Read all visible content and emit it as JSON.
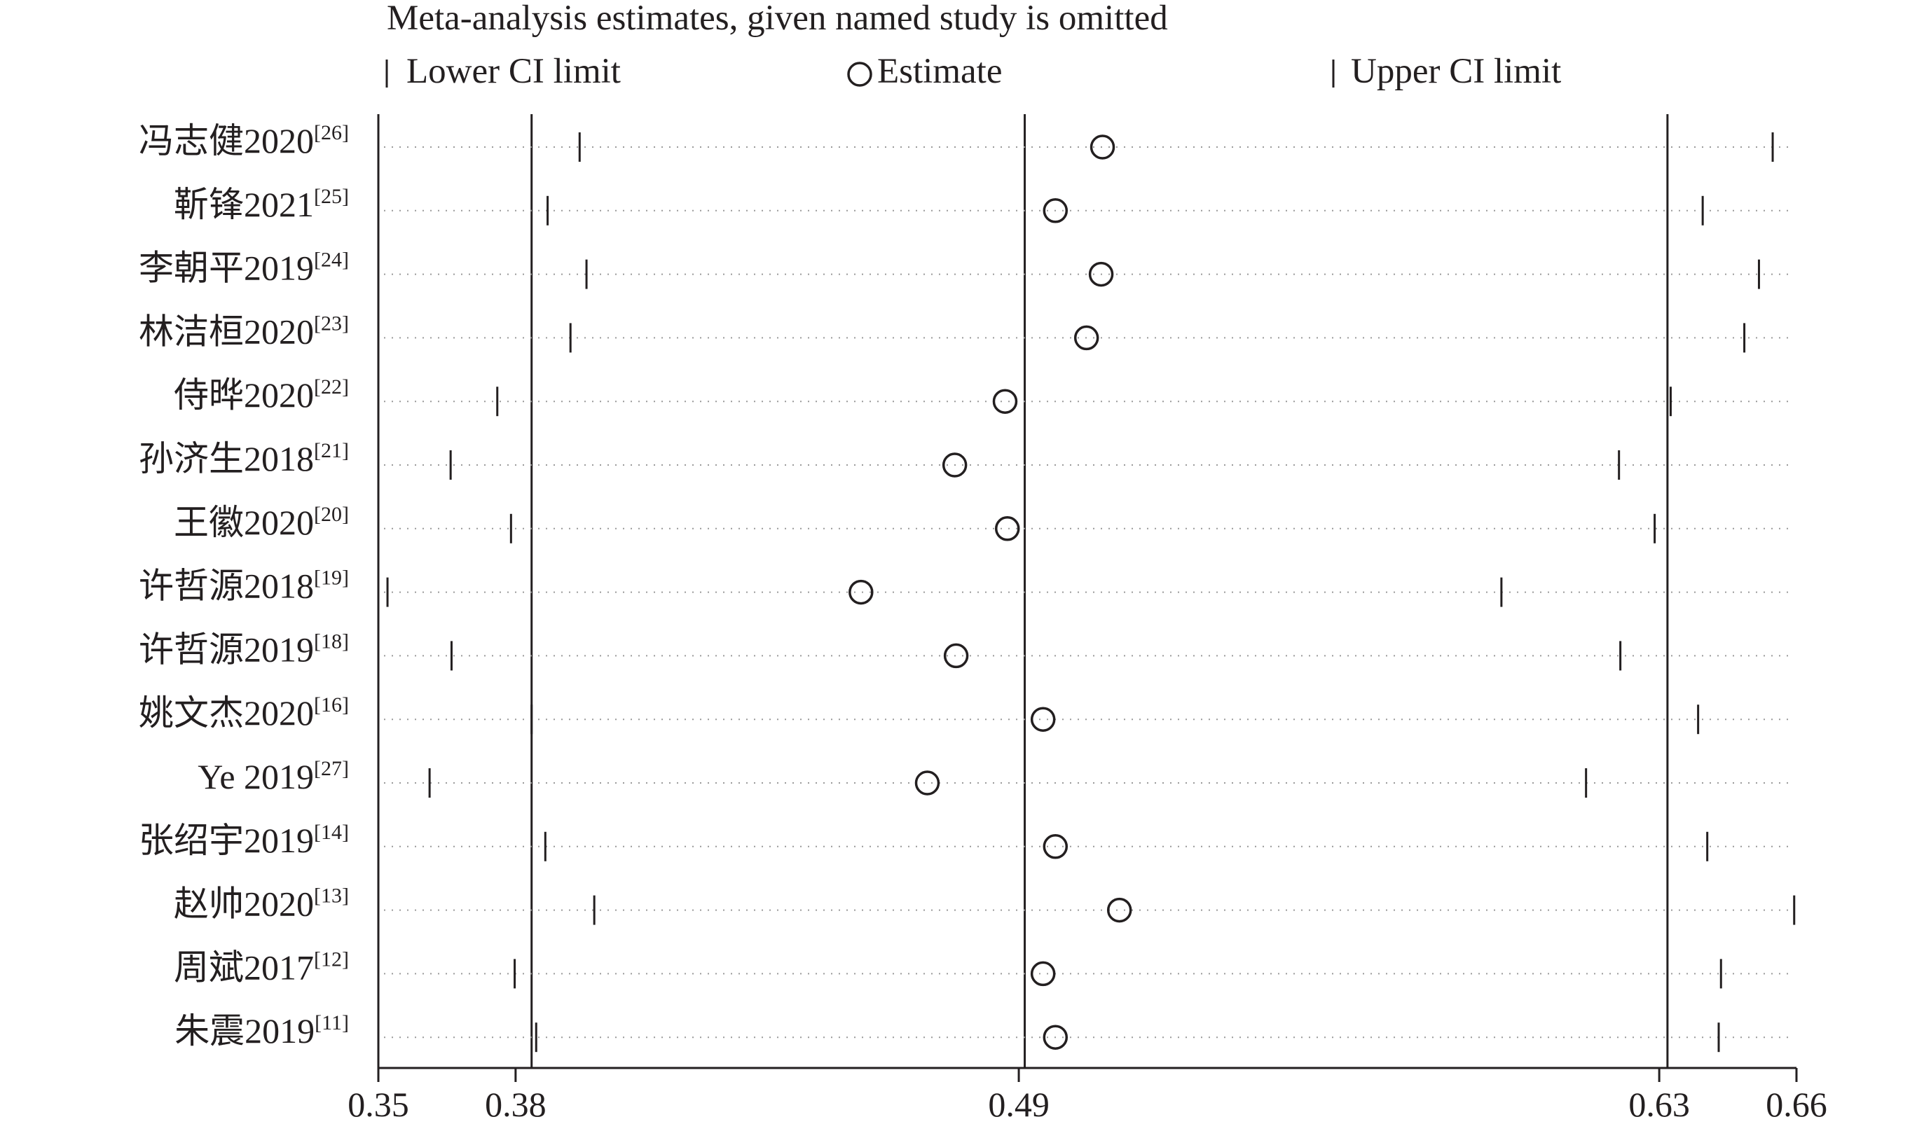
{
  "chart_data": {
    "type": "forest",
    "title": "Meta-analysis estimates, given named study is omitted",
    "legend": {
      "lower": "Lower CI limit",
      "estimate": "Estimate",
      "upper": "Upper CI limit",
      "position": "top"
    },
    "xlim": [
      0.35,
      0.66
    ],
    "xticks": [
      0.35,
      0.38,
      0.49,
      0.63,
      0.66
    ],
    "xtick_labels": [
      "0.35",
      "0.38",
      "0.49",
      "0.63",
      "0.66"
    ],
    "reference_lines": [
      0.3835,
      0.4913,
      0.6318
    ],
    "studies": [
      {
        "name": "冯志健2020",
        "ref": "[26]",
        "lower": 0.394,
        "estimate": 0.5083,
        "upper": 0.6548
      },
      {
        "name": "靳锋2021",
        "ref": "[25]",
        "lower": 0.387,
        "estimate": 0.498,
        "upper": 0.6395
      },
      {
        "name": "李朝平2019",
        "ref": "[24]",
        "lower": 0.3955,
        "estimate": 0.508,
        "upper": 0.6518
      },
      {
        "name": "林洁桓2020",
        "ref": "[23]",
        "lower": 0.392,
        "estimate": 0.5048,
        "upper": 0.6486
      },
      {
        "name": "侍晔2020",
        "ref": "[22]",
        "lower": 0.376,
        "estimate": 0.487,
        "upper": 0.6325
      },
      {
        "name": "孙济生2018",
        "ref": "[21]",
        "lower": 0.3658,
        "estimate": 0.476,
        "upper": 0.6212
      },
      {
        "name": "王徽2020",
        "ref": "[20]",
        "lower": 0.379,
        "estimate": 0.4875,
        "upper": 0.629
      },
      {
        "name": "许哲源2018",
        "ref": "[19]",
        "lower": 0.352,
        "estimate": 0.4555,
        "upper": 0.5955
      },
      {
        "name": "许哲源2019",
        "ref": "[18]",
        "lower": 0.366,
        "estimate": 0.4763,
        "upper": 0.6215
      },
      {
        "name": "姚文杰2020",
        "ref": "[16]",
        "lower": 0.3835,
        "estimate": 0.4953,
        "upper": 0.6385
      },
      {
        "name": "Ye 2019",
        "ref": "[27]",
        "lower": 0.3612,
        "estimate": 0.47,
        "upper": 0.614
      },
      {
        "name": "张绍宇2019",
        "ref": "[14]",
        "lower": 0.3865,
        "estimate": 0.498,
        "upper": 0.6405
      },
      {
        "name": "赵帅2020",
        "ref": "[13]",
        "lower": 0.3972,
        "estimate": 0.512,
        "upper": 0.6595
      },
      {
        "name": "周斌2017",
        "ref": "[12]",
        "lower": 0.3798,
        "estimate": 0.4953,
        "upper": 0.6435
      },
      {
        "name": "朱震2019",
        "ref": "[11]",
        "lower": 0.3845,
        "estimate": 0.498,
        "upper": 0.643
      }
    ]
  }
}
